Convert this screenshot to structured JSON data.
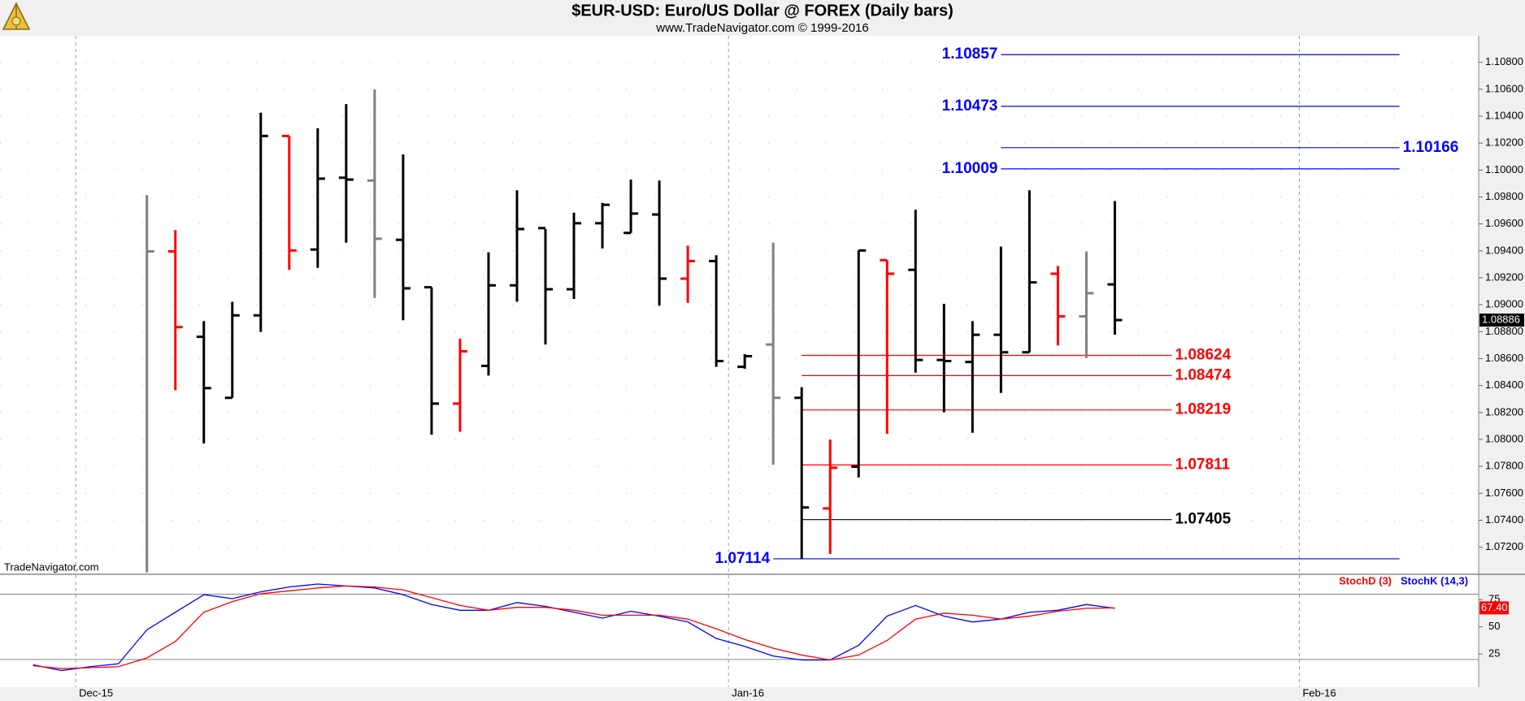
{
  "chart_data": [
    {
      "type": "ohlc",
      "title": "$EUR-USD:  Euro/US Dollar @ FOREX  (Daily bars)",
      "subtitle": "www.TradeNavigator.com © 1999-2016",
      "annotation": "TradeNavigator.com",
      "open": [
        null,
        1.09396,
        1.08762,
        1.08309,
        1.08921,
        1.10253,
        1.0941,
        1.09943,
        1.09922,
        1.09482,
        1.0913,
        1.08266,
        1.08546,
        1.09144,
        1.09569,
        1.09115,
        1.09605,
        1.09533,
        1.0967,
        1.09194,
        1.09324,
        1.08539,
        1.08705,
        1.08309,
        1.07488,
        1.07798,
        1.09331,
        1.09259,
        1.0859,
        1.08575,
        1.08777,
        1.08647,
        1.0923,
        1.08914,
        1.09151
      ],
      "high": [
        1.09814,
        1.09554,
        1.08878,
        1.09022,
        1.10426,
        1.10253,
        1.1031,
        1.1049,
        1.10598,
        1.10116,
        1.0913,
        1.08748,
        1.09389,
        1.0985,
        1.09562,
        1.09684,
        1.09756,
        1.09929,
        1.09922,
        1.09439,
        1.09367,
        1.08633,
        1.09461,
        1.08388,
        1.07999,
        1.09403,
        1.09331,
        1.09706,
        1.09007,
        1.08878,
        1.09432,
        1.0985,
        1.09288,
        1.09396,
        1.0977
      ],
      "low": [
        1.07013,
        1.08366,
        1.0797,
        1.08309,
        1.08798,
        1.09259,
        1.09274,
        1.09461,
        1.0905,
        1.08885,
        1.08035,
        1.08057,
        1.08474,
        1.09022,
        1.08705,
        1.09043,
        1.09418,
        1.09533,
        1.08993,
        1.09014,
        1.08539,
        1.08525,
        1.07812,
        1.07114,
        1.0715,
        1.07718,
        1.08042,
        1.08496,
        1.08201,
        1.0805,
        1.08345,
        1.08647,
        1.08698,
        1.08604,
        1.08777
      ],
      "close": [
        1.09396,
        1.08834,
        1.08381,
        1.08921,
        1.10253,
        1.09403,
        1.09936,
        1.09929,
        1.0949,
        1.09122,
        1.08266,
        1.08654,
        1.09144,
        1.09562,
        1.09115,
        1.09605,
        1.09742,
        1.09677,
        1.09194,
        1.09324,
        1.08582,
        1.08618,
        1.08309,
        1.07495,
        1.0779,
        1.09403,
        1.0923,
        1.0859,
        1.08582,
        1.08777,
        1.08647,
        1.09166,
        1.08914,
        1.09086,
        1.08886
      ],
      "colors": [
        "#808080",
        "#ff0000",
        "#000000",
        "#000000",
        "#000000",
        "#ff0000",
        "#000000",
        "#000000",
        "#808080",
        "#000000",
        "#000000",
        "#ff0000",
        "#000000",
        "#000000",
        "#000000",
        "#000000",
        "#000000",
        "#000000",
        "#000000",
        "#ff0000",
        "#000000",
        "#000000",
        "#808080",
        "#000000",
        "#ff0000",
        "#000000",
        "#ff0000",
        "#000000",
        "#000000",
        "#000000",
        "#000000",
        "#000000",
        "#ff0000",
        "#808080",
        "#000000"
      ],
      "xlim": [
        -5.16,
        46.78
      ],
      "xticks": [
        {
          "value": -2.5,
          "label": "Dec-15"
        },
        {
          "value": 20.43,
          "label": "Jan-16"
        },
        {
          "value": 40.48,
          "label": "Feb-16"
        }
      ],
      "ylim": [
        1.07005,
        1.10997
      ],
      "yticks": [
        {
          "value": 1.072,
          "label": "1.07200"
        },
        {
          "value": 1.074,
          "label": "1.07400"
        },
        {
          "value": 1.076,
          "label": "1.07600"
        },
        {
          "value": 1.078,
          "label": "1.07800"
        },
        {
          "value": 1.08,
          "label": "1.08000"
        },
        {
          "value": 1.082,
          "label": "1.08200"
        },
        {
          "value": 1.084,
          "label": "1.08400"
        },
        {
          "value": 1.086,
          "label": "1.08600"
        },
        {
          "value": 1.088,
          "label": "1.08800"
        },
        {
          "value": 1.09,
          "label": "1.09000"
        },
        {
          "value": 1.092,
          "label": "1.09200"
        },
        {
          "value": 1.094,
          "label": "1.09400"
        },
        {
          "value": 1.096,
          "label": "1.09600"
        },
        {
          "value": 1.098,
          "label": "1.09800"
        },
        {
          "value": 1.1,
          "label": "1.10000"
        },
        {
          "value": 1.102,
          "label": "1.10200"
        },
        {
          "value": 1.104,
          "label": "1.10400"
        },
        {
          "value": 1.106,
          "label": "1.10600"
        },
        {
          "value": 1.108,
          "label": "1.10800"
        }
      ],
      "levels": [
        {
          "value": 1.10857,
          "color": "#0000ff",
          "from": 30,
          "to": 44,
          "label_position": "left"
        },
        {
          "value": 1.10473,
          "color": "#0000ff",
          "from": 30,
          "to": 44,
          "label_position": "left"
        },
        {
          "value": 1.10166,
          "color": "#0000ff",
          "from": 30,
          "to": 44,
          "label_position": "right"
        },
        {
          "value": 1.10009,
          "color": "#0000ff",
          "from": 30,
          "to": 44,
          "label_position": "left"
        },
        {
          "value": 1.07114,
          "color": "#0000ff",
          "from": 22,
          "to": 44,
          "label_position": "left"
        },
        {
          "value": 1.08624,
          "color": "#ff0000",
          "from": 23,
          "to": 36,
          "label_position": "right"
        },
        {
          "value": 1.08474,
          "color": "#ff0000",
          "from": 23,
          "to": 36,
          "label_position": "right"
        },
        {
          "value": 1.08219,
          "color": "#ff0000",
          "from": 23,
          "to": 36,
          "label_position": "right"
        },
        {
          "value": 1.07811,
          "color": "#ff0000",
          "from": 23,
          "to": 36,
          "label_position": "right"
        },
        {
          "value": 1.07405,
          "color": "#000000",
          "from": 23,
          "to": 36,
          "label_position": "right"
        }
      ]
    },
    {
      "type": "line",
      "series": [
        {
          "name": "StochK (14,3)",
          "color": "#0000ff",
          "values": [
            15.2,
            9.8,
            13.4,
            16.1,
            47.3,
            63.4,
            79.5,
            75.9,
            82.1,
            86.6,
            89.3,
            87.5,
            85.7,
            79.5,
            70.5,
            65.2,
            65.2,
            72.3,
            68.8,
            63.4,
            58.0,
            64.3,
            59.8,
            54.5,
            39.3,
            32.1,
            23.2,
            19.6,
            19.6,
            33.0,
            59.8,
            69.6,
            59.8,
            54.5,
            57.1,
            63.4,
            65.2,
            70.5,
            67.0
          ]
        },
        {
          "name": "StochD (3)",
          "color": "#ff0000",
          "values": [
            14.3,
            11.6,
            12.5,
            13.4,
            21.4,
            36.6,
            63.4,
            73.2,
            80.4,
            83.0,
            85.7,
            87.5,
            86.6,
            83.9,
            76.8,
            69.6,
            65.2,
            67.9,
            67.9,
            65.2,
            60.7,
            60.7,
            60.7,
            57.1,
            48.2,
            38.4,
            30.4,
            24.1,
            19.6,
            24.1,
            37.5,
            57.1,
            62.5,
            60.7,
            57.1,
            59.8,
            64.3,
            67.0,
            67.4
          ],
          "value_labels": [
            null,
            null,
            null,
            null,
            null,
            null,
            null,
            null,
            null,
            null,
            null,
            null,
            null,
            null,
            null,
            null,
            null,
            null,
            null,
            null,
            null,
            null,
            null,
            null,
            null,
            null,
            null,
            null,
            null,
            null,
            null,
            null,
            null,
            null,
            null,
            null,
            null,
            null,
            "67.40"
          ]
        }
      ],
      "ylim": [
        -5.4,
        97.5
      ],
      "yticks": [
        25,
        50,
        75
      ],
      "ref_lines": [
        80,
        20
      ]
    }
  ]
}
